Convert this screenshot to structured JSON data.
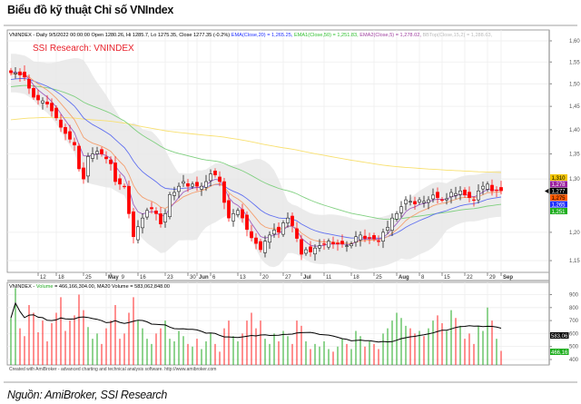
{
  "title": "Biểu đồ kỹ thuật Chỉ số VNIndex",
  "source": "Nguồn: AmiBroker, SSI Research",
  "credit": "Created with AmiBroker - advanced charting and technical analysis software. http://www.amibroker.com",
  "chart_data": {
    "type": "candlestick",
    "title": "SSI Research: VNINDEX",
    "header": {
      "prefix": "VNINDEX - Daily 9/5/2022 00:00:00 Open 1280.26, Hi 1285.7, Lo 1275.35, Close 1277.35 (-0.2%)",
      "ema20": "EMA(Close,20) = 1,265.25,",
      "ema50": "EMA1(Close,50) = 1,251.83,",
      "ema5": "EMA2(Close,5) = 1,278.02,",
      "bbtop": "BBTop(Close,15,2) = 1,288.63,"
    },
    "y_scale": "log",
    "ylim": [
      1140,
      1620
    ],
    "y_ticks": [
      "1,60",
      "1,55",
      "1,50",
      "1,45",
      "1,40",
      "1,35",
      "1,30",
      "1,20",
      "1,15"
    ],
    "y_tick_values": [
      1600,
      1550,
      1500,
      1450,
      1400,
      1350,
      1300,
      1200,
      1150
    ],
    "x_ticks": [
      {
        "label": "12",
        "index": 6,
        "bold": false
      },
      {
        "label": "18",
        "index": 10,
        "bold": false
      },
      {
        "label": "25",
        "index": 16,
        "bold": false
      },
      {
        "label": "May",
        "index": 21,
        "bold": true
      },
      {
        "label": "9",
        "index": 22,
        "bold": false
      },
      {
        "label": "16",
        "index": 28,
        "bold": false
      },
      {
        "label": "23",
        "index": 34,
        "bold": false
      },
      {
        "label": "30",
        "index": 39,
        "bold": false
      },
      {
        "label": "Jun",
        "index": 41,
        "bold": true
      },
      {
        "label": "6",
        "index": 44,
        "bold": false
      },
      {
        "label": "13",
        "index": 50,
        "bold": false
      },
      {
        "label": "20",
        "index": 55,
        "bold": false
      },
      {
        "label": "27",
        "index": 60,
        "bold": false
      },
      {
        "label": "Jul",
        "index": 64,
        "bold": true
      },
      {
        "label": "11",
        "index": 69,
        "bold": false
      },
      {
        "label": "18",
        "index": 75,
        "bold": false
      },
      {
        "label": "25",
        "index": 80,
        "bold": false
      },
      {
        "label": "Aug",
        "index": 85,
        "bold": true
      },
      {
        "label": "8",
        "index": 90,
        "bold": false
      },
      {
        "label": "15",
        "index": 95,
        "bold": false
      },
      {
        "label": "22",
        "index": 100,
        "bold": false
      },
      {
        "label": "29",
        "index": 105,
        "bold": false
      },
      {
        "label": "Sep",
        "index": 108,
        "bold": true
      }
    ],
    "close": [
      1525,
      1525,
      1520,
      1515,
      1490,
      1470,
      1464,
      1462,
      1455,
      1440,
      1425,
      1405,
      1392,
      1380,
      1368,
      1320,
      1300,
      1345,
      1350,
      1355,
      1350,
      1340,
      1330,
      1295,
      1290,
      1286,
      1234,
      1192,
      1210,
      1226,
      1240,
      1243,
      1234,
      1215,
      1234,
      1270,
      1274,
      1286,
      1295,
      1286,
      1290,
      1286,
      1286,
      1295,
      1310,
      1308,
      1295,
      1255,
      1226,
      1234,
      1240,
      1226,
      1205,
      1190,
      1180,
      1169,
      1184,
      1195,
      1204,
      1200,
      1217,
      1226,
      1212,
      1189,
      1161,
      1169,
      1165,
      1172,
      1176,
      1179,
      1184,
      1179,
      1179,
      1179,
      1176,
      1179,
      1192,
      1195,
      1189,
      1189,
      1188,
      1184,
      1200,
      1209,
      1226,
      1234,
      1247,
      1260,
      1257,
      1252,
      1260,
      1257,
      1260,
      1269,
      1264,
      1260,
      1262,
      1274,
      1272,
      1277,
      1269,
      1264,
      1260,
      1277,
      1286,
      1290,
      1277,
      1278,
      1277.35
    ],
    "last_values": [
      {
        "label": "1,310",
        "color": "#f2c500",
        "text": "#000"
      },
      {
        "label": "1,278",
        "color": "#9b1fa0",
        "text": "#fff"
      },
      {
        "label": "1,277",
        "color": "#000000",
        "text": "#fff"
      },
      {
        "label": "1,275",
        "color": "#ff5a00",
        "text": "#000"
      },
      {
        "label": "1,265",
        "color": "#1f2fff",
        "text": "#fff"
      },
      {
        "label": "1,251",
        "color": "#1fae1f",
        "text": "#fff"
      }
    ],
    "colors": {
      "up": "#ffffff",
      "down": "#ff0000",
      "ema5": "#a060c0",
      "ema10": "#f4a070",
      "ema20": "#6070f0",
      "ema50": "#80d080",
      "ma200": "#f8e070",
      "bband": "#e6e6e6"
    },
    "volume": {
      "header_prefix": "VNINDEX - ",
      "header_volume": "Volume",
      "header_rest": " = 466,166,304.00, MA20 Volume = 583,062,848.00",
      "y_ticks": [
        "900",
        "800",
        "700",
        "600",
        "500",
        "400"
      ],
      "y_tick_values": [
        900,
        800,
        700,
        600,
        500,
        400
      ],
      "unit": "million",
      "values": [
        720,
        950,
        640,
        580,
        820,
        760,
        610,
        700,
        540,
        680,
        760,
        880,
        620,
        700,
        740,
        900,
        780,
        650,
        560,
        600,
        520,
        640,
        700,
        820,
        560,
        600,
        760,
        880,
        700,
        640,
        560,
        520,
        600,
        640,
        700,
        560,
        540,
        620,
        580,
        520,
        500,
        560,
        480,
        540,
        600,
        520,
        460,
        640,
        700,
        580,
        540,
        600,
        700,
        760,
        640,
        700,
        560,
        520,
        600,
        540,
        620,
        580,
        520,
        700,
        660,
        540,
        480,
        520,
        500,
        540,
        480,
        460,
        500,
        560,
        520,
        480,
        620,
        580,
        500,
        540,
        520,
        480,
        600,
        640,
        700,
        760,
        720,
        660,
        640,
        600,
        620,
        580,
        640,
        700,
        740,
        680,
        620,
        780,
        720,
        660,
        560,
        600,
        520,
        660,
        620,
        800,
        700,
        560,
        466
      ],
      "last_values": [
        {
          "label": "583,06",
          "color": "#000000",
          "text": "#fff"
        },
        {
          "label": "466,16",
          "color": "#1fae1f",
          "text": "#fff"
        }
      ]
    }
  }
}
